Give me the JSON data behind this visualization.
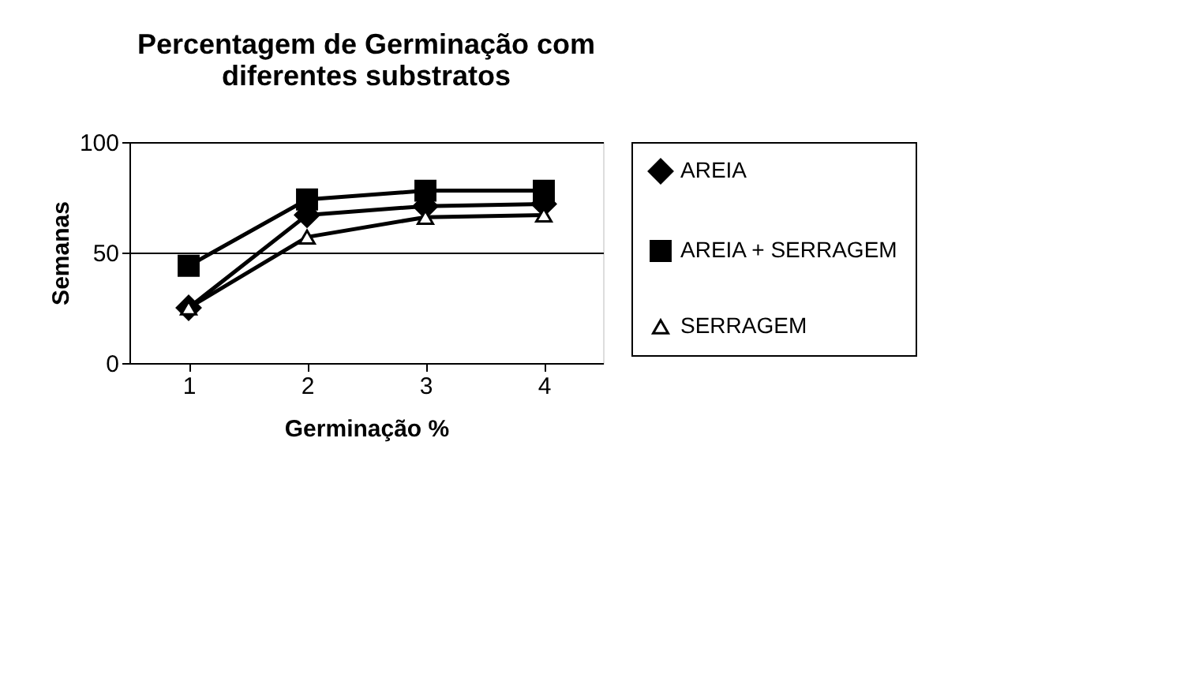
{
  "chart_data": {
    "type": "line",
    "title": [
      "Percentagem de Germinação com",
      "diferentes substratos"
    ],
    "xlabel": "Germinação %",
    "ylabel": "Semanas",
    "categories": [
      "1",
      "2",
      "3",
      "4"
    ],
    "series": [
      {
        "name": "AREIA",
        "color": "#000000",
        "marker": "diamond",
        "values": [
          25,
          67,
          71,
          72
        ]
      },
      {
        "name": "AREIA + SERRAGEM",
        "color": "#000000",
        "marker": "square",
        "values": [
          44,
          74,
          78,
          78
        ]
      },
      {
        "name": "SERRAGEM",
        "color": "#000000",
        "marker": "triangle",
        "values": [
          25,
          57,
          66,
          67
        ]
      }
    ],
    "ylim": [
      0,
      100
    ],
    "yticks": [
      0,
      50,
      100
    ],
    "grid": "y",
    "legend": "right",
    "line_style": "solid"
  }
}
